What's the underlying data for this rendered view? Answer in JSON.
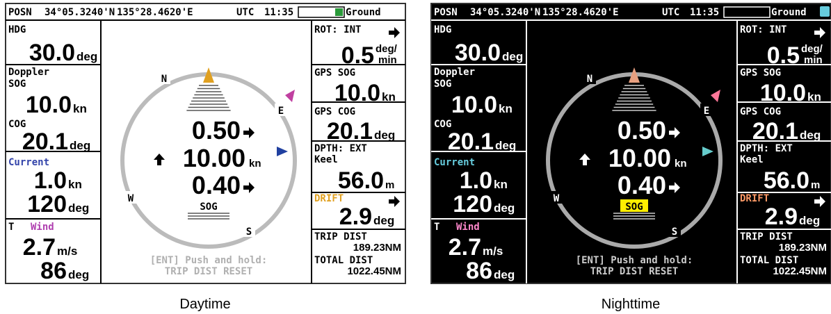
{
  "captions": [
    "Daytime",
    "Nighttime"
  ],
  "status_bar": {
    "posn_label": "POSN",
    "latitude": "34°05.3240'N",
    "longitude": "135°28.4620'E",
    "utc_label": "UTC",
    "time": "11:35",
    "mode": "Ground"
  },
  "left_panel": {
    "hdg": {
      "label": "HDG",
      "value": "30.0",
      "unit": "deg"
    },
    "doppler": {
      "label_line1": "Doppler",
      "label_line2": "SOG",
      "sog": "10.0",
      "sog_unit": "kn",
      "cog_label": "COG",
      "cog": "20.1",
      "cog_unit": "deg"
    },
    "current": {
      "label": "Current",
      "speed": "1.0",
      "speed_unit": "kn",
      "direction": "120",
      "direction_unit": "deg"
    },
    "wind": {
      "prefix": "T",
      "label": "Wind",
      "speed": "2.7",
      "speed_unit": "m/s",
      "direction": "86",
      "direction_unit": "deg"
    }
  },
  "right_panel": {
    "rot": {
      "label": "ROT: INT",
      "value": "0.5",
      "unit_top": "deg/",
      "unit_bottom": "min"
    },
    "gps_sog": {
      "label": "GPS SOG",
      "value": "10.0",
      "unit": "kn"
    },
    "gps_cog": {
      "label": "GPS COG",
      "value": "20.1",
      "unit": "deg"
    },
    "depth": {
      "label": "DPTH: EXT",
      "reference": "Keel",
      "value": "56.0",
      "unit": "m"
    },
    "drift": {
      "label": "DRIFT",
      "value": "2.9",
      "unit": "deg"
    },
    "trip": {
      "label": "TRIP DIST",
      "value": "189.23NM"
    },
    "total": {
      "label": "TOTAL DIST",
      "value": "1022.45NM"
    }
  },
  "compass": {
    "north": "N",
    "east": "E",
    "south": "S",
    "west": "W",
    "fore_aft": "0.50",
    "speed": "10.00",
    "speed_unit": "kn",
    "port_stbd": "0.40",
    "mode": "SOG",
    "hint_line1": "[ENT] Push and hold:",
    "hint_line2": "TRIP DIST RESET"
  }
}
